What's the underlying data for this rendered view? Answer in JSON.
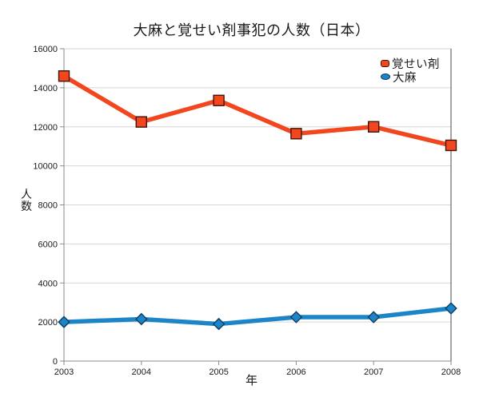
{
  "chart_data": {
    "type": "line",
    "title": "大麻と覚せい剤事犯の人数（日本）",
    "xlabel": "年",
    "ylabel": "人数",
    "categories": [
      "2003",
      "2004",
      "2005",
      "2006",
      "2007",
      "2008"
    ],
    "series": [
      {
        "name": "覚せい剤",
        "marker": "square",
        "color": "#f2461f",
        "border_color": "#401508",
        "values": [
          14600,
          12250,
          13350,
          11650,
          12000,
          11050
        ]
      },
      {
        "name": "大麻",
        "marker": "diamond",
        "color": "#1b85c8",
        "border_color": "#0d3c5f",
        "values": [
          2000,
          2150,
          1900,
          2250,
          2250,
          2700
        ]
      }
    ],
    "ylim": [
      0,
      16000
    ],
    "ytick_step": 2000,
    "grid": true,
    "legend_position": "top-right",
    "colors": {
      "gridline": "#d6d6d6",
      "axis": "#8a8a8a",
      "right_border": "#4a4a4a",
      "tick": "#8a8a8a",
      "text": "#191919",
      "background": "#ffffff"
    }
  }
}
